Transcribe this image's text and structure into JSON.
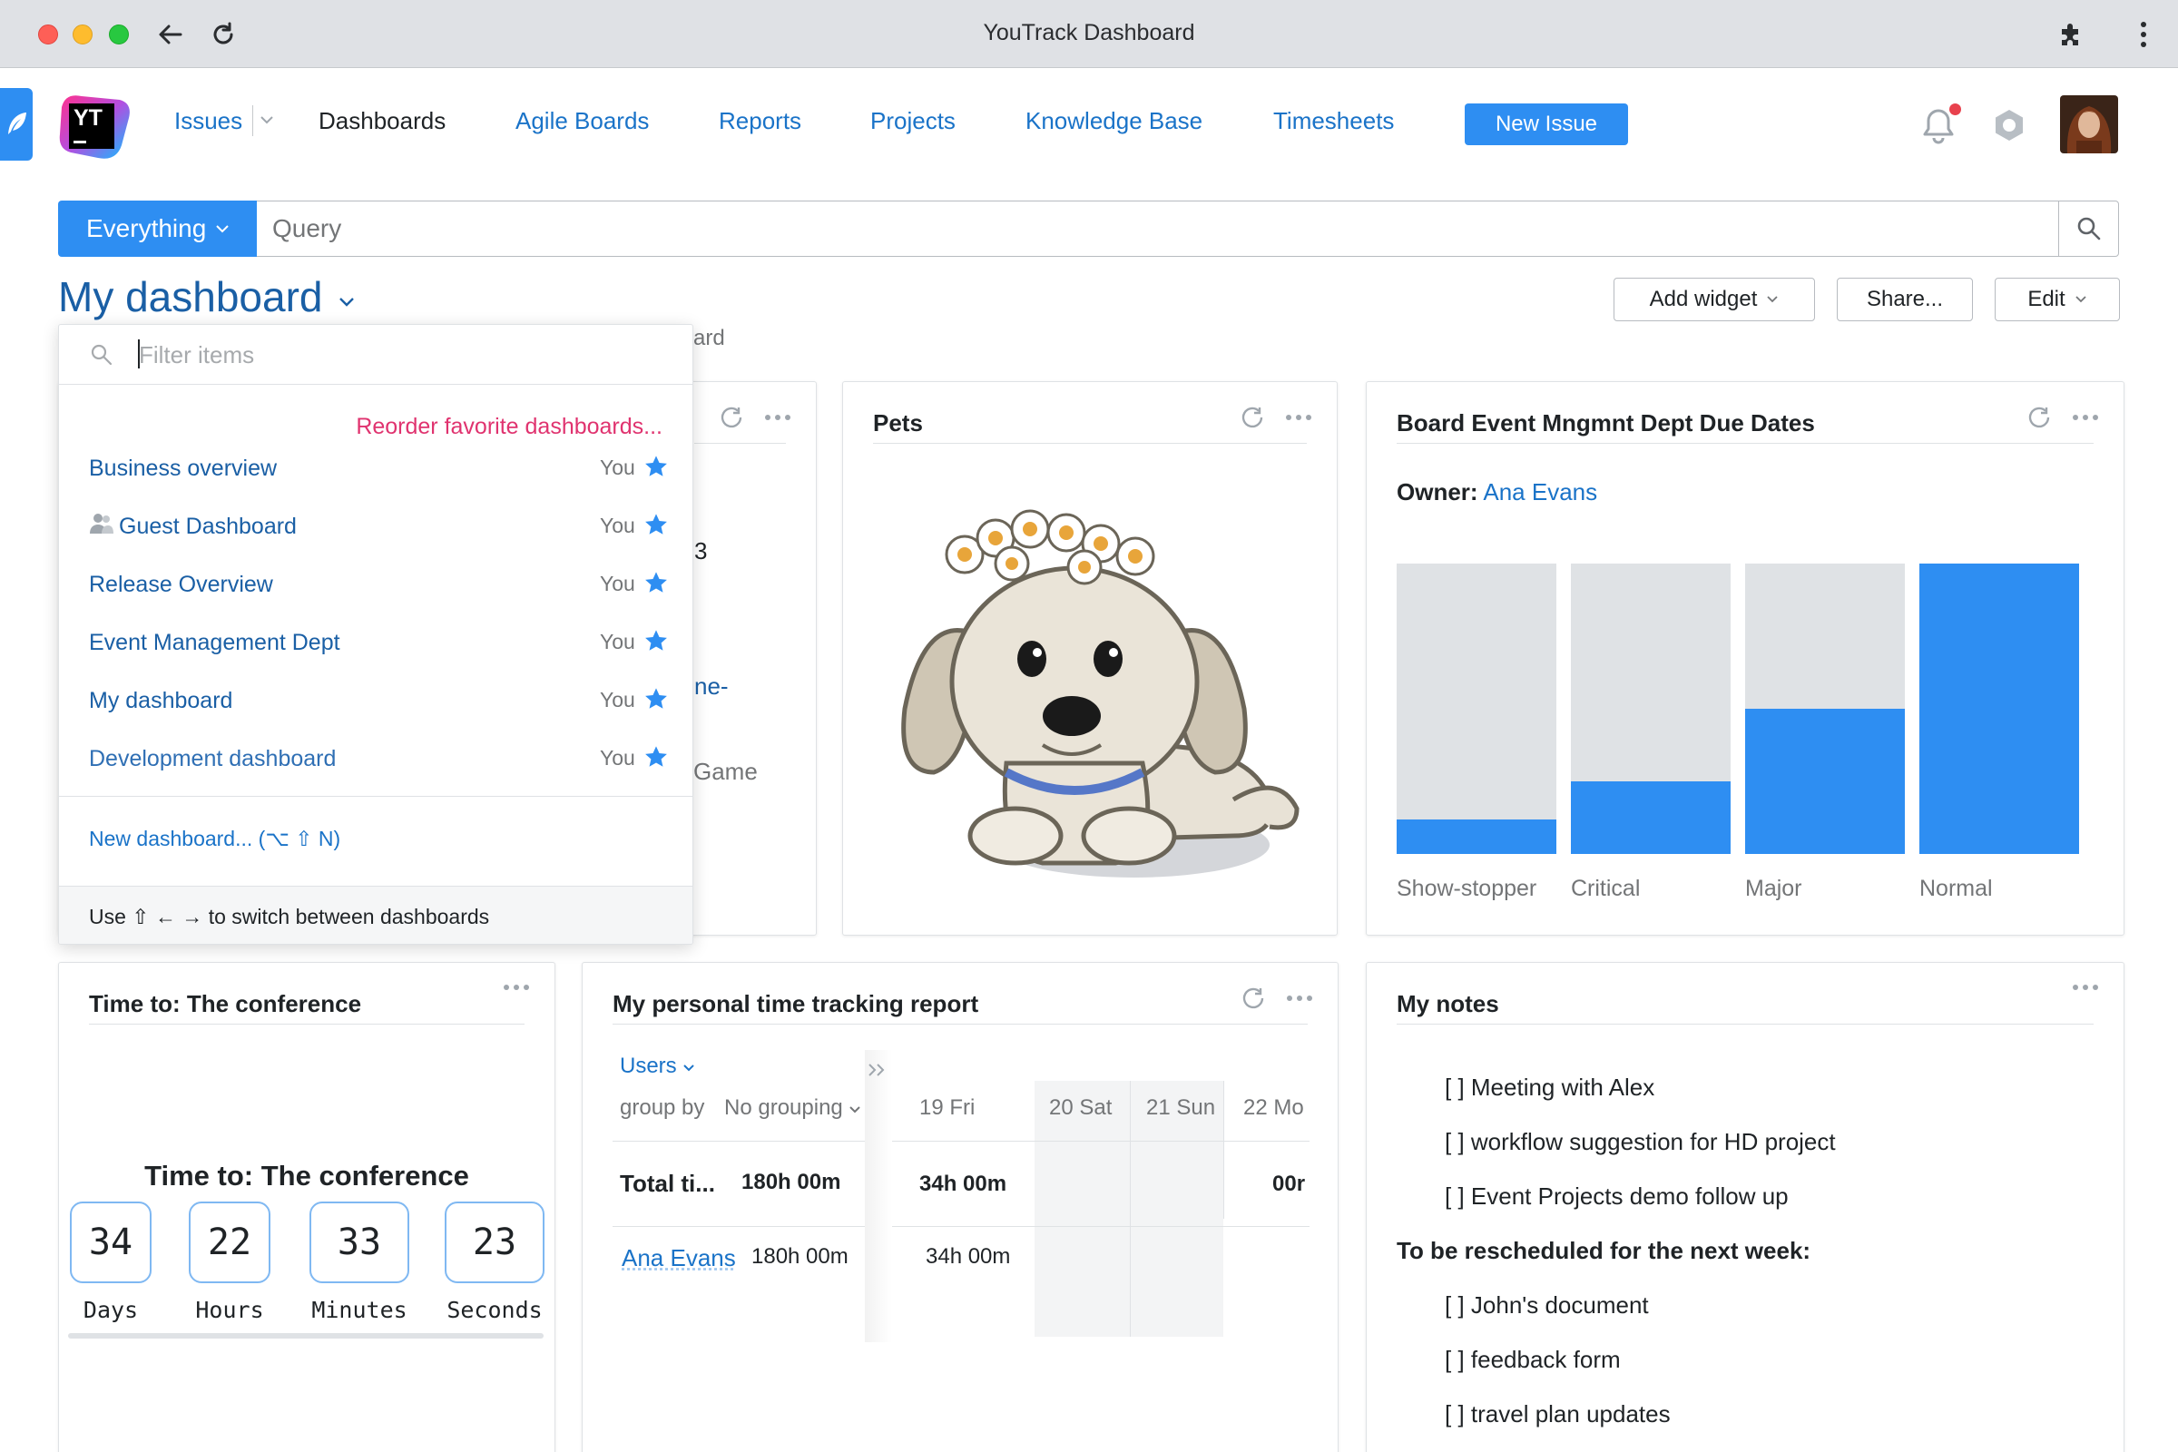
{
  "browser": {
    "title": "YouTrack Dashboard"
  },
  "nav": {
    "issues": "Issues",
    "dashboards": "Dashboards",
    "agile_boards": "Agile Boards",
    "reports": "Reports",
    "projects": "Projects",
    "knowledge_base": "Knowledge Base",
    "timesheets": "Timesheets",
    "new_issue": "New Issue",
    "logo_text": "YT"
  },
  "search": {
    "scope": "Everything",
    "placeholder": "Query"
  },
  "dashboard": {
    "title": "My dashboard",
    "add_widget": "Add widget",
    "share": "Share...",
    "edit": "Edit"
  },
  "behind_fragments": {
    "ard": "ard",
    "three": "3",
    "ne": "ne-",
    "game": "Game"
  },
  "dropdown": {
    "filter_placeholder": "Filter items",
    "reorder": "Reorder favorite dashboards...",
    "items": [
      {
        "name": "Business overview",
        "owner": "You",
        "guest_icon": false
      },
      {
        "name": "Guest Dashboard",
        "owner": "You",
        "guest_icon": true
      },
      {
        "name": "Release Overview",
        "owner": "You",
        "guest_icon": false
      },
      {
        "name": "Event Management Dept",
        "owner": "You",
        "guest_icon": false
      },
      {
        "name": "My dashboard",
        "owner": "You",
        "guest_icon": false
      },
      {
        "name": "Development dashboard",
        "owner": "You",
        "guest_icon": false
      }
    ],
    "new_dashboard": "New dashboard... (⌥ ⇧ N)",
    "footer": "Use ⇧ ← → to switch between dashboards"
  },
  "pets": {
    "title": "Pets"
  },
  "due_dates": {
    "title": "Board Event Mngmnt Dept Due Dates",
    "owner_label": "Owner:",
    "owner_name": "Ana Evans",
    "colors": {
      "track": "#dfe2e5",
      "fill": "#2e8ef2"
    }
  },
  "chart_data": {
    "type": "bar",
    "title": "Board Event Mngmnt Dept Due Dates",
    "categories": [
      "Show-stopper",
      "Critical",
      "Major",
      "Normal"
    ],
    "values": [
      0.12,
      0.25,
      0.5,
      1.0
    ],
    "ylim": [
      0,
      1
    ],
    "grid": false
  },
  "countdown": {
    "title": "Time to: The conference",
    "heading": "Time to: The conference",
    "units": [
      {
        "value": "34",
        "label": "Days"
      },
      {
        "value": "22",
        "label": "Hours"
      },
      {
        "value": "33",
        "label": "Minutes"
      },
      {
        "value": "23",
        "label": "Seconds"
      }
    ]
  },
  "time_tracking": {
    "title": "My personal time tracking report",
    "users": "Users",
    "group_by_label": "group by",
    "group_by_value": "No grouping",
    "days": [
      "19 Fri",
      "20 Sat",
      "21 Sun",
      "22 Mo"
    ],
    "total_label": "Total ti...",
    "total_value": "180h 00m",
    "total_day": "34h 00m",
    "total_partial": "00r",
    "user_name": "Ana Evans",
    "user_total": "180h 00m",
    "user_day": "34h 00m"
  },
  "notes": {
    "title": "My notes",
    "items": [
      "[ ] Meeting with Alex",
      "[ ] workflow suggestion for HD project",
      "[ ] Event Projects demo follow up"
    ],
    "section": "To be rescheduled for the next week:",
    "later": [
      "[ ] John's document",
      "[ ] feedback form",
      "[ ] travel plan updates"
    ]
  }
}
